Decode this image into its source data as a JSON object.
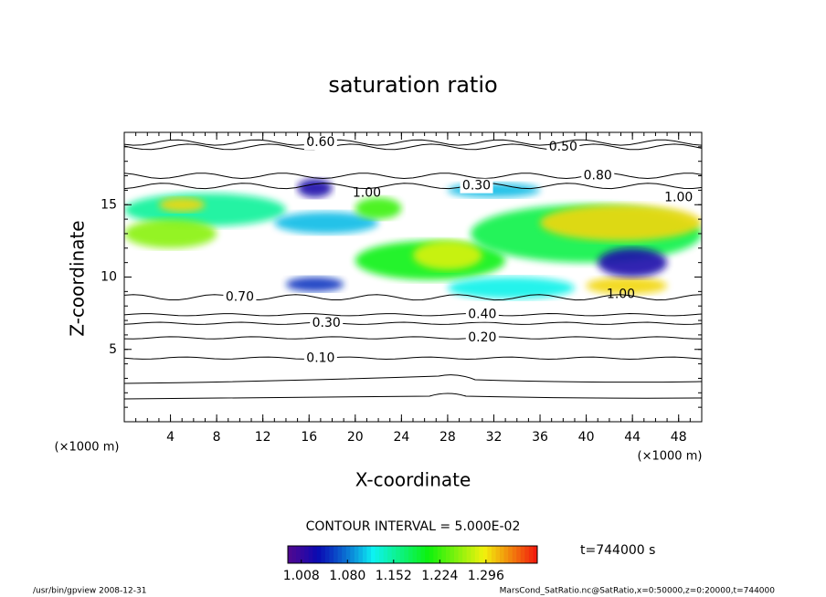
{
  "chart_data": {
    "type": "contour",
    "title": "saturation ratio",
    "x_label": "X-coordinate",
    "y_label": "Z-coordinate",
    "x_unit": "(×1000 m)",
    "y_unit": "(×1000 m)",
    "xlim": [
      0,
      50
    ],
    "xticks": [
      4,
      8,
      12,
      16,
      20,
      24,
      28,
      32,
      36,
      40,
      44,
      48
    ],
    "ylim": [
      0,
      20
    ],
    "yticks": [
      5,
      10,
      15
    ],
    "contour_interval": "CONTOUR INTERVAL = 5.000E-02",
    "contour_lines": [
      {
        "value": 0.1,
        "label": "0.10",
        "z": 4.4,
        "x": 17
      },
      {
        "value": 0.2,
        "label": "0.20",
        "z": 5.8,
        "x": 31
      },
      {
        "value": 0.3,
        "label": "0.30",
        "z": 6.8,
        "x": 17.5
      },
      {
        "value": 0.4,
        "label": "0.40",
        "z": 7.4,
        "x": 31
      },
      {
        "value": 0.7,
        "label": "0.70",
        "z": 8.6,
        "x": 10
      },
      {
        "value": 0.8,
        "label": "0.80",
        "z": 17,
        "x": 41
      },
      {
        "value": 0.5,
        "label": "0.50",
        "z": 19,
        "x": 38
      },
      {
        "value": 0.6,
        "label": "0.60",
        "z": 19.3,
        "x": 17
      },
      {
        "value": 0.3,
        "label": "0.30",
        "z": 16.3,
        "x": 30.5
      }
    ],
    "contour_labels_extra": [
      {
        "value": 1,
        "label": "1.00",
        "x": 21,
        "z": 15.8
      },
      {
        "value": 1,
        "label": "1.00",
        "x": 48,
        "z": 15.5
      },
      {
        "value": 1,
        "label": "1.00",
        "x": 43,
        "z": 8.8
      }
    ],
    "shaded_regions": [
      {
        "x": [
          0,
          14
        ],
        "z": [
          13.5,
          15.8
        ],
        "value": 1.15
      },
      {
        "x": [
          0,
          8
        ],
        "z": [
          12,
          14
        ],
        "value": 1.25
      },
      {
        "x": [
          3,
          7
        ],
        "z": [
          14.5,
          15.5
        ],
        "value": 1.3
      },
      {
        "x": [
          13,
          22
        ],
        "z": [
          13,
          14.5
        ],
        "value": 1.1
      },
      {
        "x": [
          15,
          18
        ],
        "z": [
          15.5,
          16.8
        ],
        "value": 1.02
      },
      {
        "x": [
          14,
          19
        ],
        "z": [
          9,
          10
        ],
        "value": 1.05
      },
      {
        "x": [
          20,
          24
        ],
        "z": [
          14,
          15.5
        ],
        "value": 1.22
      },
      {
        "x": [
          28,
          36
        ],
        "z": [
          15.5,
          16.5
        ],
        "value": 1.1
      },
      {
        "x": [
          20,
          33
        ],
        "z": [
          9.8,
          12.5
        ],
        "value": 1.2
      },
      {
        "x": [
          25,
          31
        ],
        "z": [
          10.5,
          12.5
        ],
        "value": 1.28
      },
      {
        "x": [
          30,
          50
        ],
        "z": [
          11,
          15
        ],
        "value": 1.18
      },
      {
        "x": [
          36,
          50
        ],
        "z": [
          12.5,
          15
        ],
        "value": 1.3
      },
      {
        "x": [
          40,
          47
        ],
        "z": [
          8.8,
          10
        ],
        "value": 1.3
      },
      {
        "x": [
          41,
          47
        ],
        "z": [
          10,
          12
        ],
        "value": 1.02
      },
      {
        "x": [
          28,
          39
        ],
        "z": [
          8.5,
          10
        ],
        "value": 1.12
      }
    ],
    "colorbar_lim": [
      0.987,
      1.376
    ],
    "colorbar_ticks": [
      {
        "value": 1.008,
        "label": "1.008"
      },
      {
        "value": 1.08,
        "label": "1.080"
      },
      {
        "value": 1.152,
        "label": "1.152"
      },
      {
        "value": 1.224,
        "label": "1.224"
      },
      {
        "value": 1.296,
        "label": "1.296"
      }
    ],
    "time_label": "t=744000 s",
    "footer_left": "/usr/bin/gpview  2008-12-31",
    "footer_right": "MarsCond_SatRatio.nc@SatRatio,x=0:50000,z=0:20000,t=744000"
  }
}
